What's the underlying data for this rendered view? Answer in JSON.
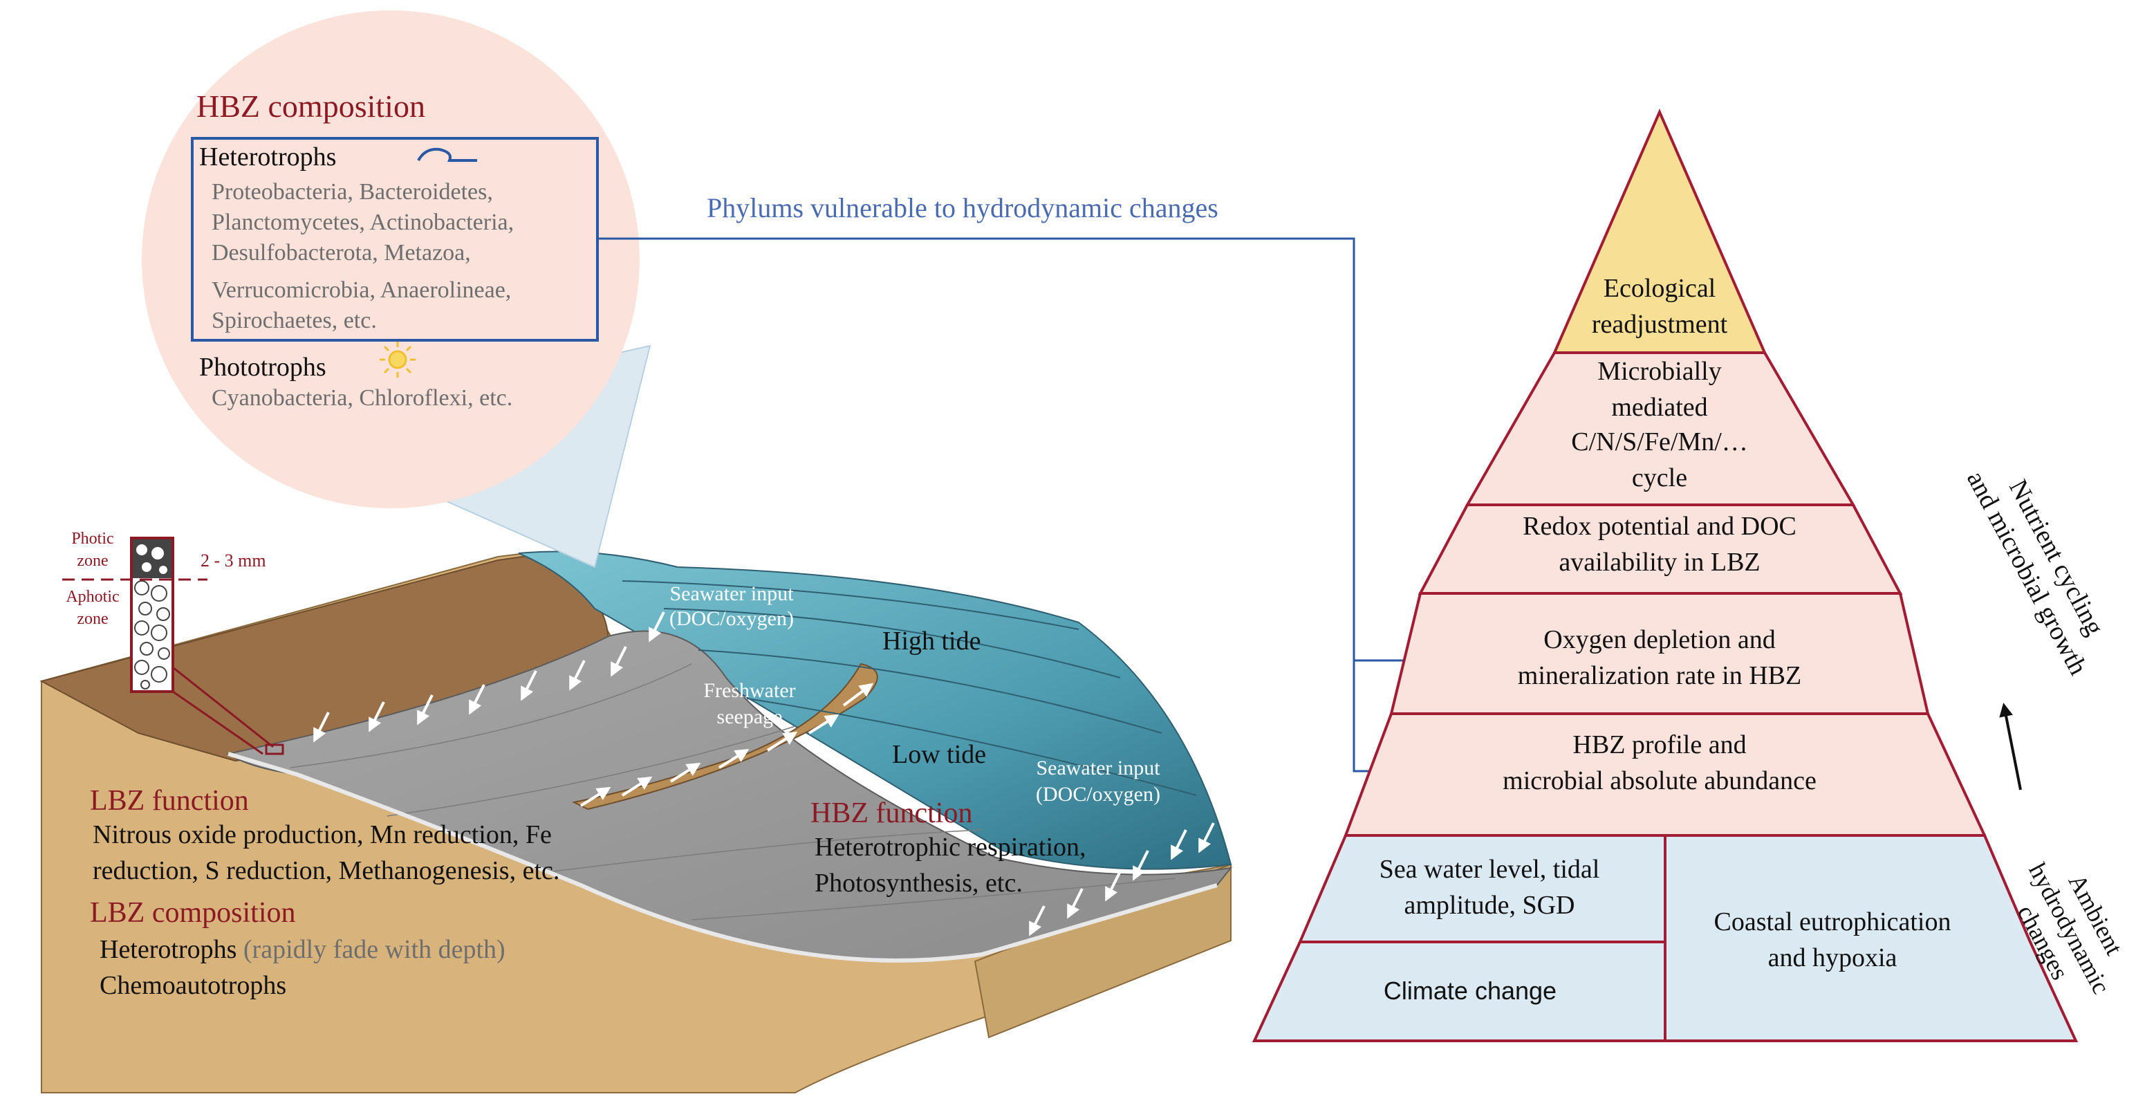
{
  "hbz_composition": {
    "title": "HBZ composition",
    "heterotrophs": {
      "heading": "Heterotrophs",
      "lines": [
        "Proteobacteria, Bacteroidetes,",
        "Planctomycetes, Actinobacteria,",
        "Desulfobacterota, Metazoa,",
        "Verrucomicrobia, Anaerolineae,",
        "Spirochaetes, etc."
      ]
    },
    "phototrophs": {
      "heading": "Phototrophs",
      "line": "Cyanobacteria, Chloroflexi, etc."
    }
  },
  "connector_label": "Phylums vulnerable to hydrodynamic changes",
  "core": {
    "photic": [
      "Photic",
      "zone"
    ],
    "aphotic": [
      "Aphotic",
      "zone"
    ],
    "depth": "2 - 3 mm"
  },
  "beach": {
    "seawater_input_top": [
      "Seawater input",
      "(DOC/oxygen)"
    ],
    "high_tide": "High tide",
    "freshwater": [
      "Freshwater",
      "seepage"
    ],
    "low_tide": "Low tide",
    "seawater_input_right": [
      "Seawater input",
      "(DOC/oxygen)"
    ]
  },
  "lbz": {
    "function_title": "LBZ function",
    "function_lines": [
      "Nitrous oxide production, Mn reduction, Fe",
      "reduction, S  reduction,  Methanogenesis, etc."
    ],
    "composition_title": "LBZ composition",
    "heterotrophs": "Heterotrophs",
    "heterotrophs_note": "(rapidly fade with depth)",
    "chemo": "Chemoautotrophs"
  },
  "hbz_function": {
    "title": "HBZ function",
    "lines": [
      "Heterotrophic respiration,",
      "Photosynthesis, etc."
    ]
  },
  "pyramid": {
    "top": [
      "Ecological",
      "readjustment"
    ],
    "level2": [
      "Microbially",
      "mediated",
      "C/N/S/Fe/Mn/…",
      "cycle"
    ],
    "level3": [
      "Redox potential and DOC",
      "availability in LBZ"
    ],
    "level4": [
      "Oxygen depletion and",
      "mineralization rate in HBZ"
    ],
    "level5": [
      "HBZ profile and",
      "microbial absolute abundance"
    ],
    "base_left_top": [
      "Sea water level, tidal",
      "amplitude, SGD"
    ],
    "base_left_bottom": "Climate change",
    "base_right": [
      "Coastal eutrophication",
      "and hypoxia"
    ],
    "side_upper": [
      "Nutrient cycling",
      "and microbial growth"
    ],
    "side_lower": [
      "Ambient",
      "hydrodynamic",
      "changes"
    ]
  },
  "colors": {
    "dark_red": "#8b1a24",
    "pyramid_pink": "#fae3dc",
    "pyramid_yellow": "#f7e096",
    "pyramid_blue": "#dbe9f2",
    "connector_blue": "#2a58a4",
    "bubble_pink": "#fbe2da",
    "sand": "#d8b47c",
    "wet_sand": "#9a7048",
    "sea": "#5eaec0"
  }
}
